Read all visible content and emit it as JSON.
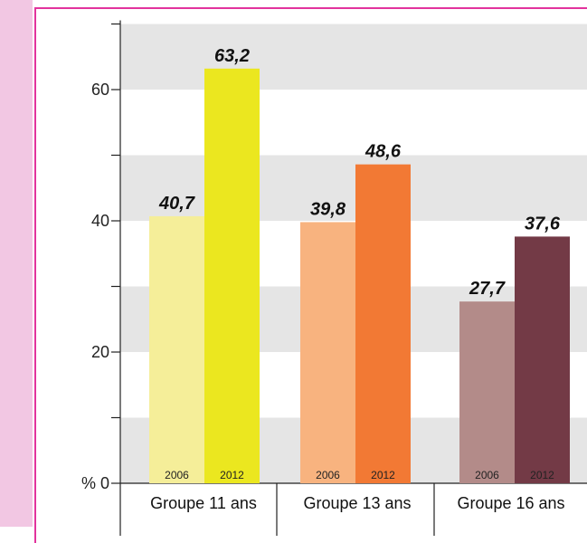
{
  "chart_data": {
    "type": "bar",
    "categories": [
      "Groupe 11 ans",
      "Groupe 13 ans",
      "Groupe 16 ans"
    ],
    "series": [
      {
        "name": "2006",
        "values": [
          40.7,
          39.8,
          27.7
        ],
        "labels": [
          "40,7",
          "39,8",
          "27,7"
        ]
      },
      {
        "name": "2012",
        "values": [
          63.2,
          48.6,
          37.6
        ],
        "labels": [
          "63,2",
          "48,6",
          "37,6"
        ]
      }
    ],
    "colors": [
      [
        "#f5ee99",
        "#ebe71f"
      ],
      [
        "#f8b37f",
        "#f27934"
      ],
      [
        "#b38b89",
        "#733a46"
      ]
    ],
    "y_ticks": [
      {
        "value": 0,
        "label": "% 0"
      },
      {
        "value": 20,
        "label": "20"
      },
      {
        "value": 40,
        "label": "40"
      },
      {
        "value": 60,
        "label": "60"
      }
    ],
    "ylim": [
      0,
      70
    ],
    "band_color": "#e5e5e5",
    "title": "",
    "xlabel": "",
    "ylabel": ""
  }
}
